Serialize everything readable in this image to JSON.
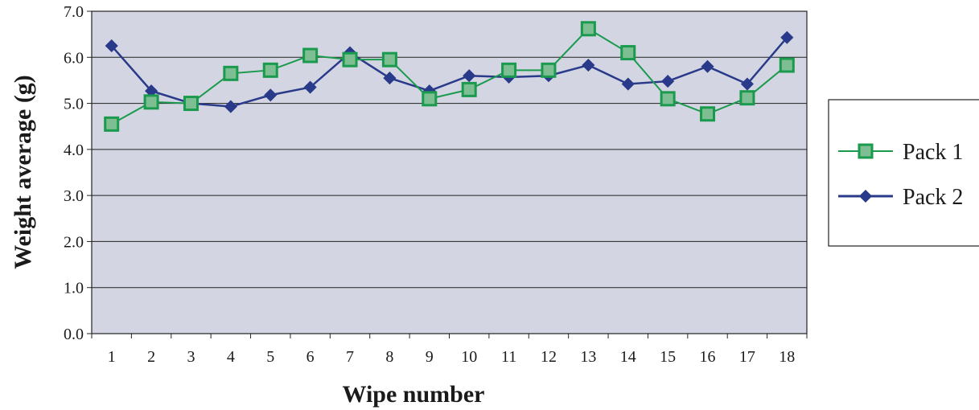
{
  "chart_data": {
    "type": "line",
    "xlabel": "Wipe number",
    "ylabel": "Weight average (g)",
    "categories": [
      "1",
      "2",
      "3",
      "4",
      "5",
      "6",
      "7",
      "8",
      "9",
      "10",
      "11",
      "12",
      "13",
      "14",
      "15",
      "16",
      "17",
      "18"
    ],
    "ylim": [
      0,
      7
    ],
    "yticks": [
      "0.0",
      "1.0",
      "2.0",
      "3.0",
      "4.0",
      "5.0",
      "6.0",
      "7.0"
    ],
    "grid": true,
    "legend_position": "right",
    "plot_background": "#d3d6e2",
    "series": [
      {
        "name": "Pack 1",
        "color": "#1a9a4c",
        "marker": "square",
        "marker_fill": "#7dbf93",
        "values": [
          4.55,
          5.03,
          5.0,
          5.65,
          5.72,
          6.04,
          5.95,
          5.95,
          5.1,
          5.3,
          5.72,
          5.72,
          6.62,
          6.1,
          5.1,
          4.77,
          5.12,
          5.83
        ]
      },
      {
        "name": "Pack 2",
        "color": "#2a3a8a",
        "marker": "diamond",
        "marker_fill": "#2a3a8a",
        "values": [
          6.25,
          5.27,
          5.0,
          4.93,
          5.18,
          5.35,
          6.1,
          5.55,
          5.27,
          5.6,
          5.57,
          5.6,
          5.83,
          5.42,
          5.48,
          5.8,
          5.42,
          6.43
        ]
      }
    ]
  }
}
